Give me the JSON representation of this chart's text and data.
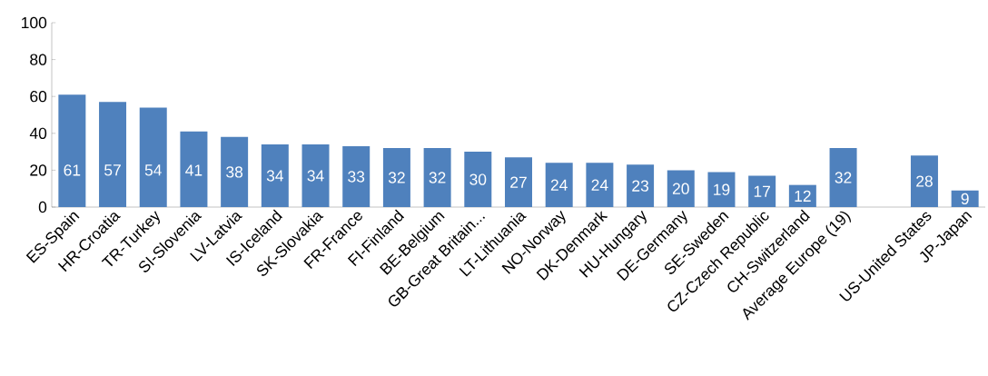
{
  "chart_data": {
    "type": "bar",
    "categories": [
      "ES-Spain",
      "HR-Croatia",
      "TR-Turkey",
      "SI-Slovenia",
      "LV-Latvia",
      "IS-Iceland",
      "SK-Slovakia",
      "FR-France",
      "FI-Finland",
      "BE-Belgium",
      "GB-Great Britain...",
      "LT-Lithuania",
      "NO-Norway",
      "DK-Denmark",
      "HU-Hungary",
      "DE-Germany",
      "SE-Sweden",
      "CZ-Czech Republic",
      "CH-Switzerland",
      "Average Europe (19)",
      null,
      "US-United States",
      "JP-Japan"
    ],
    "values": [
      61,
      57,
      54,
      41,
      38,
      34,
      34,
      33,
      32,
      32,
      30,
      27,
      24,
      24,
      23,
      20,
      19,
      17,
      12,
      32,
      null,
      28,
      9
    ],
    "color": "#4f81bd",
    "ylim": [
      0,
      100
    ],
    "yticks": [
      0,
      20,
      40,
      60,
      80,
      100
    ],
    "data_labels": true
  }
}
